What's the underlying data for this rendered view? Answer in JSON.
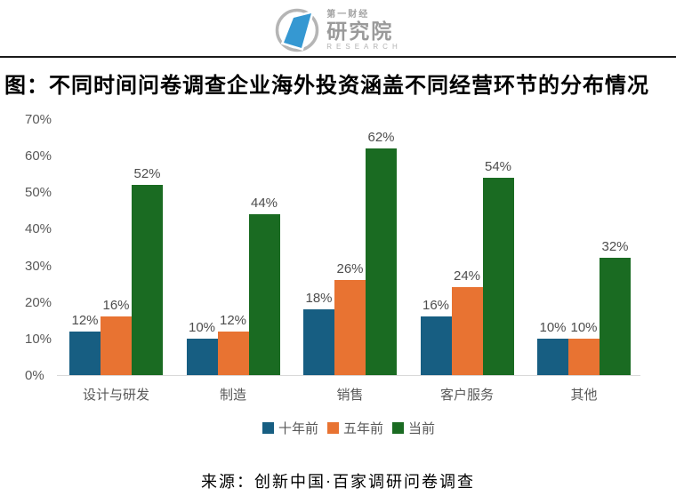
{
  "logo": {
    "brand_top": "第一财经",
    "brand_main": "研究院",
    "brand_sub": "RESEARCH"
  },
  "title": "图：不同时间问卷调查企业海外投资涵盖不同经营环节的分布情况",
  "source": "来源：创新中国·百家调研问卷调查",
  "colors": {
    "series_blue": "#175e82",
    "series_orange": "#e87332",
    "series_green": "#1a6b22",
    "axis_line": "#d9d9d9",
    "tick_text": "#595959",
    "value_text": "#4d4d4d",
    "logo_blue": "#3598d2",
    "logo_gray": "#b5b5b5"
  },
  "chart_data": {
    "type": "bar",
    "title": "图：不同时间问卷调查企业海外投资涵盖不同经营环节的分布情况",
    "categories": [
      "设计与研发",
      "制造",
      "销售",
      "客户服务",
      "其他"
    ],
    "series": [
      {
        "name": "十年前",
        "color": "#175e82",
        "values": [
          12,
          10,
          18,
          16,
          10
        ]
      },
      {
        "name": "五年前",
        "color": "#e87332",
        "values": [
          16,
          12,
          26,
          24,
          10
        ]
      },
      {
        "name": "当前",
        "color": "#1a6b22",
        "values": [
          52,
          44,
          62,
          54,
          32
        ]
      }
    ],
    "value_suffix": "%",
    "xlabel": "",
    "ylabel": "",
    "ylim": [
      0,
      70
    ],
    "yticks": [
      "0%",
      "10%",
      "20%",
      "30%",
      "40%",
      "50%",
      "60%",
      "70%"
    ],
    "grid": false,
    "legend_position": "bottom"
  }
}
